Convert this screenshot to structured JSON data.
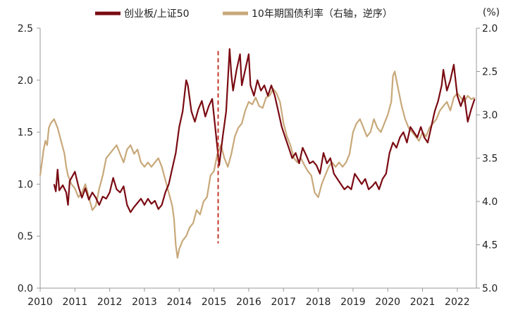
{
  "chart_data": {
    "type": "line",
    "title": "",
    "legend": {
      "placement": "top-center",
      "entries": [
        {
          "label": "创业板/上证50",
          "color": "#7a0a12"
        },
        {
          "label": "10年期国债利率（右轴，逆序）",
          "color": "#c8a87a"
        }
      ]
    },
    "x_axis": {
      "ticks": [
        "2010",
        "2011",
        "2012",
        "2013",
        "2014",
        "2015",
        "2016",
        "2017",
        "2018",
        "2019",
        "2020",
        "2021",
        "2022"
      ],
      "range": [
        2010.0,
        2022.55
      ]
    },
    "y_left": {
      "range": [
        0.0,
        2.5
      ],
      "ticks": [
        "0.0",
        "0.5",
        "1.0",
        "1.5",
        "2.0",
        "2.5"
      ]
    },
    "y_right": {
      "range_top": 2.0,
      "range_bottom": 5.0,
      "inverted": true,
      "unit_label": "(%)",
      "ticks": [
        "2.0",
        "2.5",
        "3.0",
        "3.5",
        "4.0",
        "4.5",
        "5.0"
      ]
    },
    "annotation": {
      "type": "vertical-dashed-line",
      "x": 2015.12,
      "y_top": 2.28,
      "y_bottom": 0.43,
      "color": "#c0392b"
    },
    "series": [
      {
        "name": "创业板/上证50",
        "axis": "left",
        "color": "#7a0a12",
        "points": [
          [
            2010.4,
            1.0
          ],
          [
            2010.45,
            0.93
          ],
          [
            2010.5,
            1.14
          ],
          [
            2010.55,
            0.94
          ],
          [
            2010.65,
            0.99
          ],
          [
            2010.75,
            0.92
          ],
          [
            2010.8,
            0.8
          ],
          [
            2010.85,
            1.03
          ],
          [
            2011.0,
            1.12
          ],
          [
            2011.1,
            0.98
          ],
          [
            2011.2,
            0.87
          ],
          [
            2011.3,
            0.96
          ],
          [
            2011.4,
            0.85
          ],
          [
            2011.5,
            0.92
          ],
          [
            2011.6,
            0.87
          ],
          [
            2011.7,
            0.8
          ],
          [
            2011.8,
            0.88
          ],
          [
            2011.9,
            0.86
          ],
          [
            2012.0,
            0.92
          ],
          [
            2012.1,
            1.06
          ],
          [
            2012.2,
            0.95
          ],
          [
            2012.3,
            0.92
          ],
          [
            2012.4,
            0.98
          ],
          [
            2012.5,
            0.8
          ],
          [
            2012.6,
            0.73
          ],
          [
            2012.7,
            0.78
          ],
          [
            2012.8,
            0.82
          ],
          [
            2012.9,
            0.86
          ],
          [
            2013.0,
            0.8
          ],
          [
            2013.1,
            0.86
          ],
          [
            2013.2,
            0.81
          ],
          [
            2013.3,
            0.84
          ],
          [
            2013.4,
            0.76
          ],
          [
            2013.5,
            0.8
          ],
          [
            2013.6,
            0.92
          ],
          [
            2013.7,
            1.0
          ],
          [
            2013.8,
            1.15
          ],
          [
            2013.9,
            1.3
          ],
          [
            2014.0,
            1.55
          ],
          [
            2014.1,
            1.7
          ],
          [
            2014.15,
            1.85
          ],
          [
            2014.2,
            2.0
          ],
          [
            2014.25,
            1.95
          ],
          [
            2014.35,
            1.7
          ],
          [
            2014.45,
            1.6
          ],
          [
            2014.55,
            1.72
          ],
          [
            2014.65,
            1.8
          ],
          [
            2014.75,
            1.65
          ],
          [
            2014.85,
            1.75
          ],
          [
            2014.95,
            1.82
          ],
          [
            2015.05,
            1.5
          ],
          [
            2015.15,
            1.18
          ],
          [
            2015.25,
            1.45
          ],
          [
            2015.35,
            1.7
          ],
          [
            2015.45,
            2.3
          ],
          [
            2015.5,
            2.05
          ],
          [
            2015.55,
            1.9
          ],
          [
            2015.65,
            2.1
          ],
          [
            2015.75,
            2.25
          ],
          [
            2015.8,
            1.95
          ],
          [
            2015.9,
            2.1
          ],
          [
            2016.0,
            2.25
          ],
          [
            2016.05,
            1.95
          ],
          [
            2016.15,
            1.85
          ],
          [
            2016.25,
            2.0
          ],
          [
            2016.35,
            1.9
          ],
          [
            2016.45,
            1.95
          ],
          [
            2016.55,
            1.85
          ],
          [
            2016.65,
            1.95
          ],
          [
            2016.75,
            1.85
          ],
          [
            2016.85,
            1.7
          ],
          [
            2016.95,
            1.55
          ],
          [
            2017.05,
            1.45
          ],
          [
            2017.15,
            1.35
          ],
          [
            2017.25,
            1.25
          ],
          [
            2017.35,
            1.3
          ],
          [
            2017.45,
            1.2
          ],
          [
            2017.55,
            1.35
          ],
          [
            2017.65,
            1.28
          ],
          [
            2017.75,
            1.2
          ],
          [
            2017.85,
            1.22
          ],
          [
            2017.95,
            1.18
          ],
          [
            2018.05,
            1.1
          ],
          [
            2018.15,
            1.3
          ],
          [
            2018.25,
            1.2
          ],
          [
            2018.35,
            1.25
          ],
          [
            2018.45,
            1.1
          ],
          [
            2018.55,
            1.05
          ],
          [
            2018.65,
            1.0
          ],
          [
            2018.75,
            0.95
          ],
          [
            2018.85,
            0.98
          ],
          [
            2018.95,
            0.95
          ],
          [
            2019.05,
            1.1
          ],
          [
            2019.15,
            1.05
          ],
          [
            2019.25,
            1.0
          ],
          [
            2019.35,
            1.05
          ],
          [
            2019.45,
            0.95
          ],
          [
            2019.55,
            0.98
          ],
          [
            2019.65,
            1.02
          ],
          [
            2019.75,
            0.95
          ],
          [
            2019.85,
            1.05
          ],
          [
            2019.95,
            1.1
          ],
          [
            2020.05,
            1.3
          ],
          [
            2020.15,
            1.4
          ],
          [
            2020.25,
            1.35
          ],
          [
            2020.35,
            1.45
          ],
          [
            2020.45,
            1.5
          ],
          [
            2020.55,
            1.4
          ],
          [
            2020.65,
            1.55
          ],
          [
            2020.75,
            1.5
          ],
          [
            2020.85,
            1.45
          ],
          [
            2020.95,
            1.55
          ],
          [
            2021.05,
            1.45
          ],
          [
            2021.15,
            1.4
          ],
          [
            2021.25,
            1.55
          ],
          [
            2021.35,
            1.7
          ],
          [
            2021.45,
            1.8
          ],
          [
            2021.55,
            1.95
          ],
          [
            2021.6,
            2.1
          ],
          [
            2021.7,
            1.9
          ],
          [
            2021.8,
            2.0
          ],
          [
            2021.9,
            2.15
          ],
          [
            2022.0,
            1.85
          ],
          [
            2022.1,
            1.75
          ],
          [
            2022.2,
            1.85
          ],
          [
            2022.3,
            1.6
          ],
          [
            2022.4,
            1.72
          ],
          [
            2022.5,
            1.82
          ]
        ]
      },
      {
        "name": "10年期国债利率（右轴，逆序）",
        "axis": "right",
        "color": "#c8a87a",
        "points": [
          [
            2010.0,
            3.7
          ],
          [
            2010.05,
            3.55
          ],
          [
            2010.1,
            3.4
          ],
          [
            2010.15,
            3.3
          ],
          [
            2010.2,
            3.35
          ],
          [
            2010.25,
            3.15
          ],
          [
            2010.3,
            3.1
          ],
          [
            2010.4,
            3.05
          ],
          [
            2010.5,
            3.15
          ],
          [
            2010.6,
            3.3
          ],
          [
            2010.7,
            3.45
          ],
          [
            2010.75,
            3.6
          ],
          [
            2010.8,
            3.7
          ],
          [
            2010.9,
            3.8
          ],
          [
            2011.0,
            3.85
          ],
          [
            2011.1,
            3.95
          ],
          [
            2011.2,
            3.9
          ],
          [
            2011.3,
            3.8
          ],
          [
            2011.4,
            3.95
          ],
          [
            2011.5,
            4.1
          ],
          [
            2011.6,
            4.05
          ],
          [
            2011.7,
            3.85
          ],
          [
            2011.8,
            3.7
          ],
          [
            2011.9,
            3.5
          ],
          [
            2012.0,
            3.45
          ],
          [
            2012.1,
            3.4
          ],
          [
            2012.2,
            3.35
          ],
          [
            2012.3,
            3.45
          ],
          [
            2012.4,
            3.55
          ],
          [
            2012.5,
            3.4
          ],
          [
            2012.6,
            3.35
          ],
          [
            2012.7,
            3.45
          ],
          [
            2012.8,
            3.4
          ],
          [
            2012.9,
            3.55
          ],
          [
            2013.0,
            3.6
          ],
          [
            2013.1,
            3.55
          ],
          [
            2013.2,
            3.6
          ],
          [
            2013.3,
            3.55
          ],
          [
            2013.4,
            3.5
          ],
          [
            2013.5,
            3.6
          ],
          [
            2013.6,
            3.75
          ],
          [
            2013.7,
            3.9
          ],
          [
            2013.8,
            4.05
          ],
          [
            2013.85,
            4.2
          ],
          [
            2013.9,
            4.5
          ],
          [
            2013.95,
            4.65
          ],
          [
            2014.0,
            4.55
          ],
          [
            2014.1,
            4.45
          ],
          [
            2014.2,
            4.4
          ],
          [
            2014.3,
            4.3
          ],
          [
            2014.4,
            4.25
          ],
          [
            2014.5,
            4.1
          ],
          [
            2014.6,
            4.15
          ],
          [
            2014.7,
            4.0
          ],
          [
            2014.8,
            3.95
          ],
          [
            2014.9,
            3.7
          ],
          [
            2015.0,
            3.65
          ],
          [
            2015.1,
            3.45
          ],
          [
            2015.2,
            3.35
          ],
          [
            2015.3,
            3.5
          ],
          [
            2015.4,
            3.6
          ],
          [
            2015.5,
            3.45
          ],
          [
            2015.6,
            3.25
          ],
          [
            2015.7,
            3.15
          ],
          [
            2015.8,
            3.1
          ],
          [
            2015.9,
            2.95
          ],
          [
            2016.0,
            2.85
          ],
          [
            2016.1,
            2.88
          ],
          [
            2016.2,
            2.8
          ],
          [
            2016.3,
            2.9
          ],
          [
            2016.4,
            2.92
          ],
          [
            2016.5,
            2.8
          ],
          [
            2016.6,
            2.78
          ],
          [
            2016.7,
            2.7
          ],
          [
            2016.8,
            2.75
          ],
          [
            2016.9,
            2.85
          ],
          [
            2017.0,
            3.1
          ],
          [
            2017.1,
            3.25
          ],
          [
            2017.2,
            3.35
          ],
          [
            2017.3,
            3.5
          ],
          [
            2017.4,
            3.55
          ],
          [
            2017.5,
            3.5
          ],
          [
            2017.6,
            3.58
          ],
          [
            2017.7,
            3.65
          ],
          [
            2017.8,
            3.7
          ],
          [
            2017.9,
            3.9
          ],
          [
            2018.0,
            3.95
          ],
          [
            2018.1,
            3.8
          ],
          [
            2018.2,
            3.7
          ],
          [
            2018.3,
            3.6
          ],
          [
            2018.4,
            3.55
          ],
          [
            2018.5,
            3.6
          ],
          [
            2018.6,
            3.55
          ],
          [
            2018.7,
            3.6
          ],
          [
            2018.8,
            3.55
          ],
          [
            2018.9,
            3.45
          ],
          [
            2019.0,
            3.2
          ],
          [
            2019.1,
            3.1
          ],
          [
            2019.2,
            3.05
          ],
          [
            2019.3,
            3.15
          ],
          [
            2019.4,
            3.25
          ],
          [
            2019.5,
            3.2
          ],
          [
            2019.6,
            3.05
          ],
          [
            2019.7,
            3.15
          ],
          [
            2019.8,
            3.2
          ],
          [
            2019.9,
            3.1
          ],
          [
            2020.0,
            3.0
          ],
          [
            2020.1,
            2.85
          ],
          [
            2020.15,
            2.55
          ],
          [
            2020.2,
            2.5
          ],
          [
            2020.3,
            2.7
          ],
          [
            2020.4,
            2.9
          ],
          [
            2020.5,
            3.05
          ],
          [
            2020.6,
            3.15
          ],
          [
            2020.7,
            3.2
          ],
          [
            2020.8,
            3.25
          ],
          [
            2020.9,
            3.3
          ],
          [
            2021.0,
            3.2
          ],
          [
            2021.1,
            3.25
          ],
          [
            2021.2,
            3.15
          ],
          [
            2021.3,
            3.1
          ],
          [
            2021.4,
            3.05
          ],
          [
            2021.5,
            2.95
          ],
          [
            2021.6,
            2.9
          ],
          [
            2021.7,
            2.85
          ],
          [
            2021.8,
            2.95
          ],
          [
            2021.9,
            2.8
          ],
          [
            2022.0,
            2.75
          ],
          [
            2022.1,
            2.8
          ],
          [
            2022.2,
            2.85
          ],
          [
            2022.3,
            2.78
          ],
          [
            2022.4,
            2.82
          ],
          [
            2022.5,
            2.8
          ]
        ]
      }
    ]
  }
}
